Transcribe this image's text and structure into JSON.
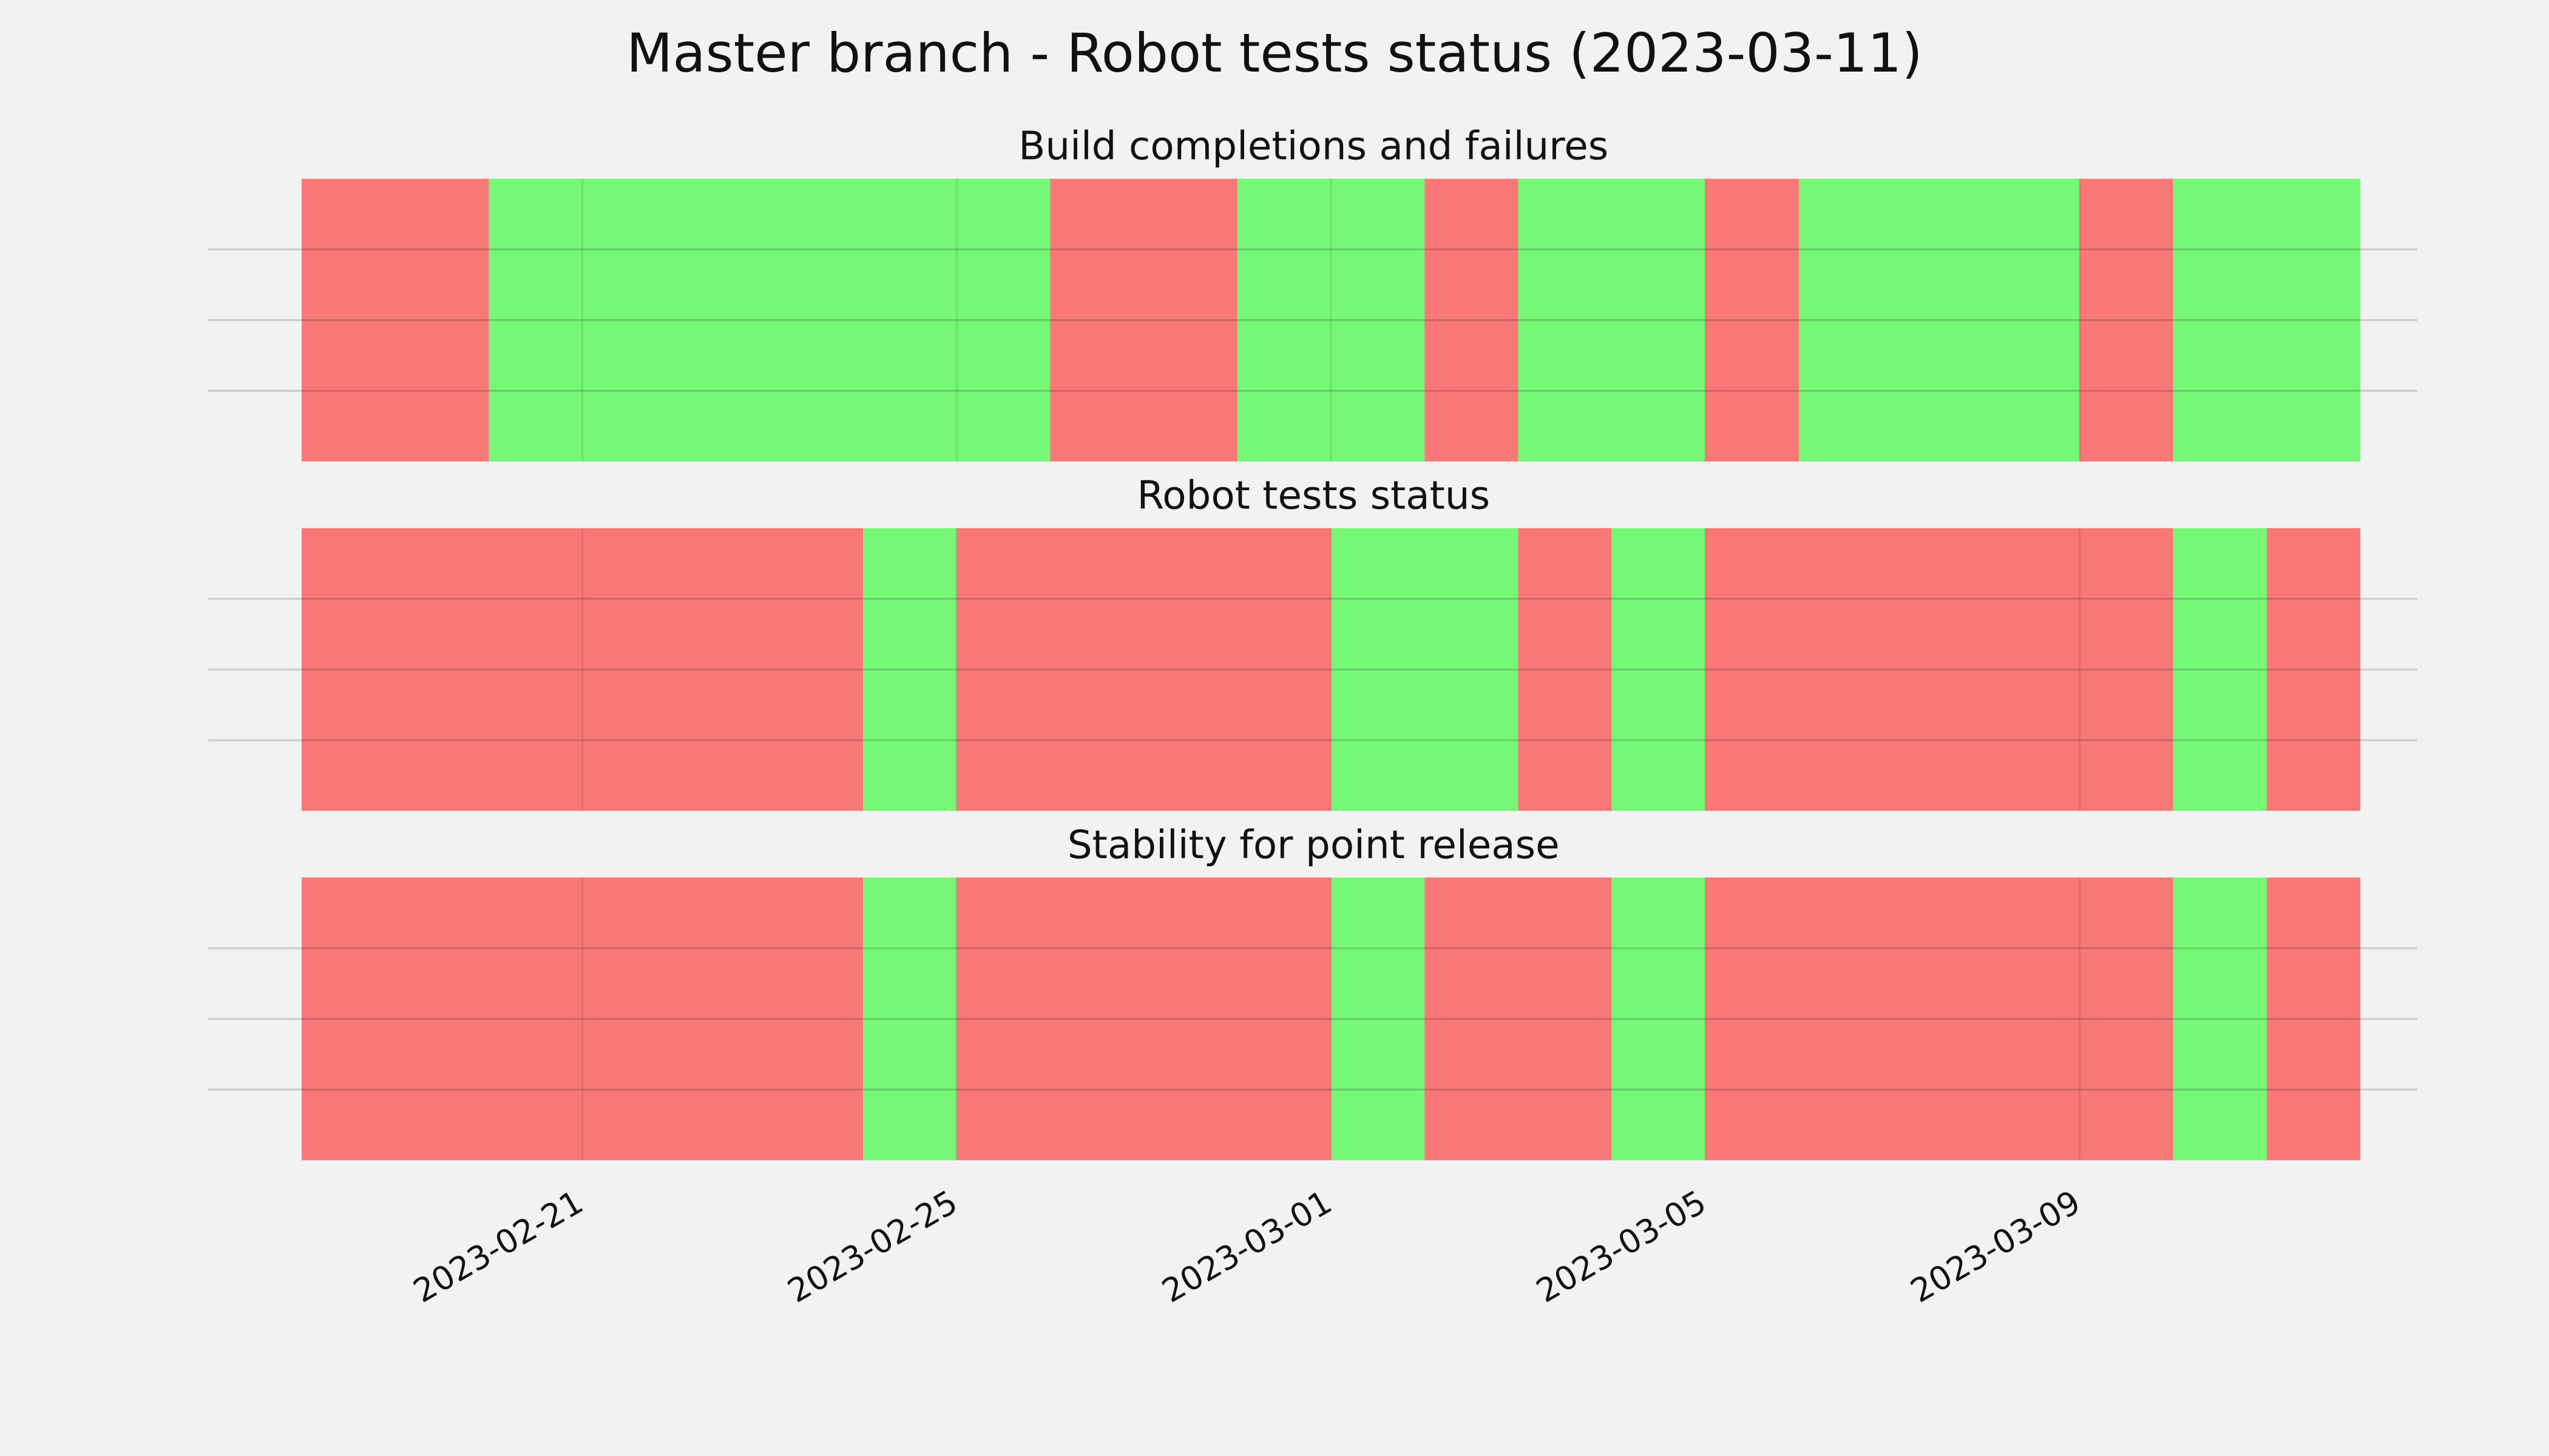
{
  "title": "Master branch - Robot tests status (2023-03-11)",
  "chart_data": [
    {
      "type": "span",
      "title": "Build completions and failures",
      "x": [
        "2023-02-18",
        "2023-02-20",
        "2023-02-26",
        "2023-02-28",
        "2023-03-02",
        "2023-03-03",
        "2023-03-05",
        "2023-03-06",
        "2023-03-09",
        "2023-03-10",
        "2023-03-12"
      ],
      "colors": [
        "#f87878",
        "#76f776",
        "#f87878",
        "#76f776",
        "#f87878",
        "#76f776",
        "#f87878",
        "#76f776",
        "#f87878",
        "#76f776"
      ],
      "xlim": [
        "2023-02-17",
        "2023-03-13"
      ],
      "ylim": [
        0,
        1
      ],
      "yticks": [
        0.25,
        0.5,
        0.75
      ],
      "xticks": [
        "2023-02-21",
        "2023-02-25",
        "2023-03-01",
        "2023-03-05",
        "2023-03-09"
      ],
      "grid": true,
      "show_xticks": false
    },
    {
      "type": "span",
      "title": "Robot tests status",
      "x": [
        "2023-02-18",
        "2023-02-24",
        "2023-02-25",
        "2023-03-01",
        "2023-03-03",
        "2023-03-04",
        "2023-03-05",
        "2023-03-10",
        "2023-03-11",
        "2023-03-12"
      ],
      "colors": [
        "#f87878",
        "#76f776",
        "#f87878",
        "#76f776",
        "#f87878",
        "#76f776",
        "#f87878",
        "#76f776",
        "#f87878"
      ],
      "xlim": [
        "2023-02-17",
        "2023-03-13"
      ],
      "ylim": [
        0,
        1
      ],
      "yticks": [
        0.25,
        0.5,
        0.75
      ],
      "xticks": [
        "2023-02-21",
        "2023-02-25",
        "2023-03-01",
        "2023-03-05",
        "2023-03-09"
      ],
      "grid": true,
      "show_xticks": false
    },
    {
      "type": "span",
      "title": "Stability for point release",
      "x": [
        "2023-02-18",
        "2023-02-24",
        "2023-02-25",
        "2023-03-01",
        "2023-03-02",
        "2023-03-04",
        "2023-03-05",
        "2023-03-10",
        "2023-03-11",
        "2023-03-12"
      ],
      "colors": [
        "#f87878",
        "#76f776",
        "#f87878",
        "#76f776",
        "#f87878",
        "#76f776",
        "#f87878",
        "#76f776",
        "#f87878"
      ],
      "xlim": [
        "2023-02-17",
        "2023-03-13"
      ],
      "ylim": [
        0,
        1
      ],
      "yticks": [
        0.25,
        0.5,
        0.75
      ],
      "xticks": [
        "2023-02-21",
        "2023-02-25",
        "2023-03-01",
        "2023-03-05",
        "2023-03-09"
      ],
      "grid": true,
      "show_xticks": true
    }
  ]
}
